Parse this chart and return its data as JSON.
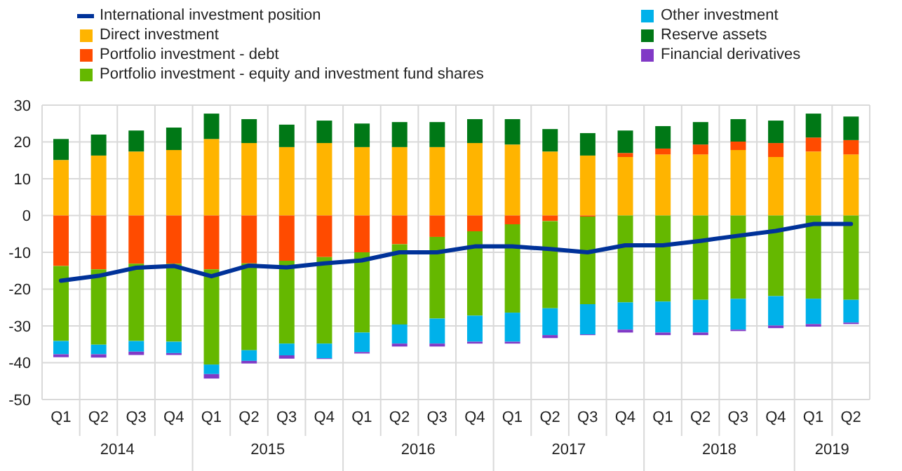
{
  "chart_data": {
    "type": "bar",
    "stacked": true,
    "categories": [
      "Q1",
      "Q2",
      "Q3",
      "Q4",
      "Q1",
      "Q2",
      "Q3",
      "Q4",
      "Q1",
      "Q2",
      "Q3",
      "Q4",
      "Q1",
      "Q2",
      "Q3",
      "Q4",
      "Q1",
      "Q2",
      "Q3",
      "Q4",
      "Q1",
      "Q2"
    ],
    "series": [
      {
        "name": "International investment position",
        "type": "line",
        "color": "#003299",
        "values": [
          -17.7,
          -16.4,
          -14.2,
          -13.7,
          -16.5,
          -13.6,
          -14.1,
          -13.0,
          -12.2,
          -10.0,
          -10.0,
          -8.4,
          -8.4,
          -9.1,
          -10.0,
          -8.1,
          -8.1,
          -6.9,
          -5.5,
          -4.2,
          -2.3,
          -2.3
        ]
      },
      {
        "name": "Direct investment",
        "color": "#ffb400",
        "values": [
          15.1,
          16.3,
          17.4,
          17.8,
          20.8,
          19.7,
          18.6,
          19.7,
          18.6,
          18.6,
          18.6,
          19.7,
          19.3,
          17.4,
          16.3,
          15.9,
          16.6,
          16.6,
          17.8,
          15.9,
          17.4,
          16.6
        ]
      },
      {
        "name": "Portfolio investment - debt",
        "color": "#ff4b00",
        "values": [
          -13.7,
          -14.6,
          -13.1,
          -13.1,
          -14.6,
          -13.0,
          -12.3,
          -11.3,
          -10.0,
          -7.8,
          -5.8,
          -4.3,
          -2.4,
          -1.5,
          -0.3,
          1.1,
          1.6,
          2.7,
          2.3,
          3.8,
          3.8,
          3.9
        ]
      },
      {
        "name": "Portfolio investment - equity and investment fund shares",
        "color": "#65b800",
        "values": [
          -20.4,
          -20.5,
          -21.0,
          -21.2,
          -25.9,
          -23.6,
          -22.5,
          -23.5,
          -21.8,
          -21.8,
          -22.2,
          -22.9,
          -24.0,
          -23.7,
          -23.8,
          -23.6,
          -23.4,
          -22.9,
          -22.6,
          -21.9,
          -22.6,
          -22.9
        ]
      },
      {
        "name": "Other investment",
        "color": "#00b1ea",
        "values": [
          -3.6,
          -2.6,
          -2.9,
          -3.1,
          -2.6,
          -2.9,
          -3.2,
          -4.0,
          -5.3,
          -5.2,
          -6.8,
          -7.1,
          -7.9,
          -7.3,
          -8.2,
          -7.4,
          -8.4,
          -8.9,
          -8.4,
          -8.0,
          -6.9,
          -6.2
        ]
      },
      {
        "name": "Reserve assets",
        "color": "#007816",
        "values": [
          5.7,
          5.7,
          5.7,
          6.1,
          6.9,
          6.5,
          6.1,
          6.1,
          6.4,
          6.8,
          6.8,
          6.5,
          6.9,
          6.1,
          6.1,
          6.1,
          6.1,
          6.1,
          6.1,
          6.1,
          6.5,
          6.4
        ]
      },
      {
        "name": "Financial derivatives",
        "color": "#8139c6",
        "values": [
          -0.8,
          -0.9,
          -0.9,
          -0.5,
          -1.2,
          -0.7,
          -0.9,
          -0.2,
          -0.4,
          -0.8,
          -0.8,
          -0.5,
          -0.5,
          -0.8,
          -0.2,
          -0.8,
          -0.7,
          -0.7,
          -0.4,
          -0.7,
          -0.7,
          -0.4
        ]
      }
    ],
    "annotations": [
      "2014",
      "2015",
      "2016",
      "2017",
      "2018",
      "2019"
    ],
    "ylim": [
      -50,
      30
    ],
    "yticks": [
      -50,
      -40,
      -30,
      -20,
      -10,
      0,
      10,
      20,
      30
    ],
    "grid": true,
    "legend": "top"
  }
}
